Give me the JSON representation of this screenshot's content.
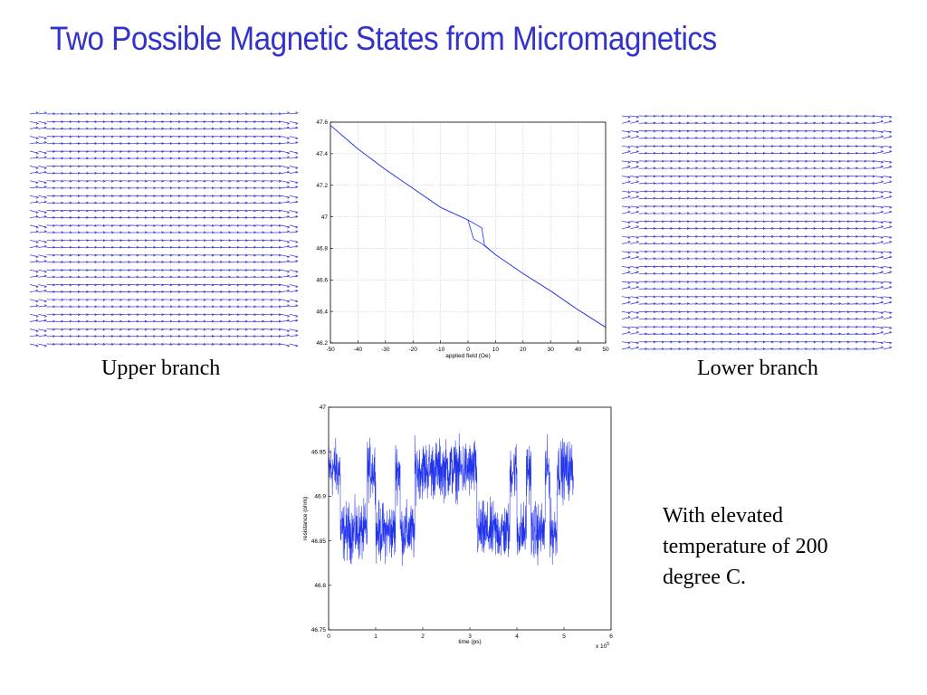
{
  "title": "Two Possible Magnetic States from Micromagnetics",
  "captions": {
    "upper": "Upper branch",
    "lower": "Lower branch"
  },
  "note": {
    "lines": [
      "With elevated",
      "temperature of 200",
      "degree C."
    ]
  },
  "colors": {
    "title": "#3333cc",
    "vectors": "#3333dd",
    "plot_line": "#2233ee",
    "grid": "#c8c8c8"
  },
  "chart_data": [
    {
      "type": "line",
      "title": "",
      "xlabel": "applied field (Oe)",
      "ylabel": "",
      "xlim": [
        -50,
        50
      ],
      "ylim": [
        46.2,
        47.6
      ],
      "xticks": [
        -50,
        -40,
        -30,
        -20,
        -10,
        0,
        10,
        20,
        30,
        40,
        50
      ],
      "yticks": [
        46.2,
        46.4,
        46.6,
        46.8,
        47,
        47.2,
        47.4,
        47.6
      ],
      "grid": true,
      "series": [
        {
          "x": [
            -50,
            -40,
            -30,
            -20,
            -10,
            0,
            5,
            6,
            10,
            20,
            30,
            40,
            50
          ],
          "y": [
            47.58,
            47.43,
            47.3,
            47.18,
            47.06,
            46.98,
            46.93,
            46.82,
            46.76,
            46.64,
            46.53,
            46.41,
            46.3
          ]
        },
        {
          "x": [
            -50,
            -40,
            -30,
            -20,
            -10,
            0,
            1,
            2,
            5,
            10,
            20,
            30,
            40,
            50
          ],
          "y": [
            47.58,
            47.43,
            47.3,
            47.18,
            47.06,
            46.98,
            46.92,
            46.86,
            46.83,
            46.76,
            46.64,
            46.53,
            46.41,
            46.3
          ]
        }
      ]
    },
    {
      "type": "line",
      "title": "",
      "xlabel": "time (ps)",
      "ylabel": "resistance (ohm)",
      "xlim": [
        0,
        6
      ],
      "ylim": [
        46.75,
        47
      ],
      "x_multiplier": "x 10",
      "x_multiplier_exponent": "5",
      "xticks": [
        0,
        1,
        2,
        3,
        4,
        5,
        6
      ],
      "yticks": [
        46.75,
        46.8,
        46.85,
        46.9,
        46.95,
        47
      ],
      "ytick_labels": [
        "46.75",
        "46.8",
        "46.85",
        "46.9",
        "46.95",
        "47"
      ],
      "grid": false,
      "states": {
        "upper_mean": 46.93,
        "lower_mean": 46.86,
        "noise_amplitude": 0.035
      },
      "segments": [
        {
          "from": 0.0,
          "to": 0.25,
          "state": "upper"
        },
        {
          "from": 0.25,
          "to": 0.82,
          "state": "lower"
        },
        {
          "from": 0.82,
          "to": 1.0,
          "state": "upper"
        },
        {
          "from": 1.0,
          "to": 1.42,
          "state": "lower"
        },
        {
          "from": 1.42,
          "to": 1.52,
          "state": "upper"
        },
        {
          "from": 1.52,
          "to": 1.83,
          "state": "lower"
        },
        {
          "from": 1.83,
          "to": 3.15,
          "state": "upper"
        },
        {
          "from": 3.15,
          "to": 3.85,
          "state": "lower"
        },
        {
          "from": 3.85,
          "to": 4.0,
          "state": "upper"
        },
        {
          "from": 4.0,
          "to": 4.2,
          "state": "lower"
        },
        {
          "from": 4.2,
          "to": 4.3,
          "state": "upper"
        },
        {
          "from": 4.3,
          "to": 4.6,
          "state": "lower"
        },
        {
          "from": 4.6,
          "to": 4.7,
          "state": "upper"
        },
        {
          "from": 4.7,
          "to": 4.85,
          "state": "lower"
        },
        {
          "from": 4.85,
          "to": 5.2,
          "state": "upper"
        }
      ]
    }
  ]
}
